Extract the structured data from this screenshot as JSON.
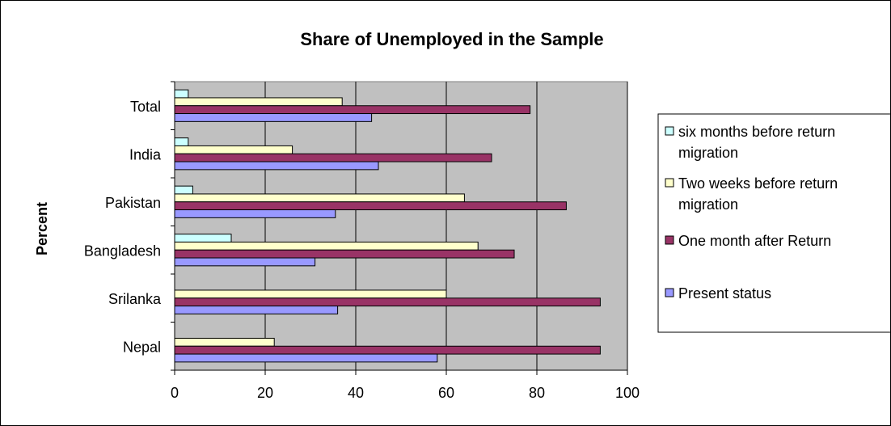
{
  "chart_data": {
    "type": "bar",
    "orientation": "horizontal",
    "title": "Share of Unemployed in the Sample",
    "xlabel": "",
    "ylabel": "Percent",
    "xlim": [
      0,
      100
    ],
    "x_ticks": [
      0,
      20,
      40,
      60,
      80,
      100
    ],
    "grid": true,
    "legend_position": "right",
    "plot_background": "#c0c0c0",
    "categories": [
      "Total",
      "India",
      "Pakistan",
      "Bangladesh",
      "Srilanka",
      "Nepal"
    ],
    "series": [
      {
        "name": "six months before return migration",
        "legend_lines": [
          "six months before return",
          "migration"
        ],
        "color": "#ccffff",
        "values": [
          3,
          3,
          4,
          12.5,
          null,
          null
        ]
      },
      {
        "name": "Two weeks before return migration",
        "legend_lines": [
          "Two weeks before return",
          "migration"
        ],
        "color": "#ffffcc",
        "values": [
          37,
          26,
          64,
          67,
          60,
          22
        ]
      },
      {
        "name": "One month after Return",
        "legend_lines": [
          "One month after Return"
        ],
        "color": "#993366",
        "values": [
          78.5,
          70,
          86.5,
          75,
          94,
          94
        ]
      },
      {
        "name": "Present status",
        "legend_lines": [
          " Present status"
        ],
        "color": "#9999ff",
        "values": [
          43.5,
          45,
          35.5,
          31,
          36,
          58
        ]
      }
    ]
  }
}
